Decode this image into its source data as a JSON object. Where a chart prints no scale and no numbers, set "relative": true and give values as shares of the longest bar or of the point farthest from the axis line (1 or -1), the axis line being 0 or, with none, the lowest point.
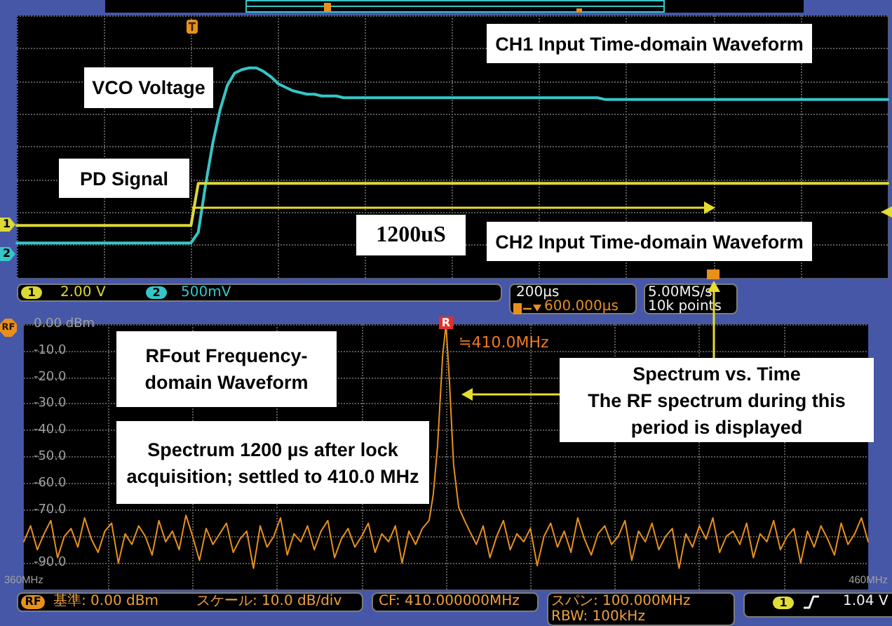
{
  "chart_data": [
    {
      "type": "line",
      "relative": true,
      "grid": true,
      "categories": [
        null,
        null,
        null,
        null,
        null,
        null,
        null,
        null,
        null,
        null,
        null,
        null,
        null,
        null,
        null,
        null,
        null,
        null,
        null,
        null,
        null,
        null,
        null,
        null,
        null,
        null,
        null,
        null,
        null,
        null,
        null,
        null,
        null,
        null,
        null,
        null,
        null,
        null,
        null,
        null,
        null,
        null,
        null,
        null,
        null,
        null,
        null,
        null,
        null,
        null,
        null,
        null,
        null,
        null,
        null,
        null,
        null,
        null,
        null,
        null,
        null,
        null,
        null,
        null,
        null,
        null,
        null,
        null,
        null,
        null,
        null,
        null,
        null,
        null,
        null,
        null,
        null,
        null,
        null,
        null,
        null,
        null,
        null,
        null,
        null,
        null,
        null,
        null,
        null,
        null,
        null,
        null,
        null,
        null,
        null,
        null,
        null,
        null,
        null,
        null,
        null,
        null,
        null,
        null,
        null,
        null,
        null,
        null,
        null,
        null,
        null,
        null,
        null,
        null,
        null,
        null,
        null,
        null,
        null,
        null,
        null
      ],
      "series": [
        {
          "name": "VCO Voltage",
          "color": "#35c6c8",
          "values": [
            0,
            0,
            0,
            0,
            0,
            0,
            0,
            0,
            0,
            0,
            0,
            0,
            0,
            0,
            0,
            0,
            0,
            0,
            0,
            0,
            0,
            0,
            0,
            0,
            0,
            0.06,
            0.33,
            0.57,
            0.76,
            0.9,
            0.97,
            0.99,
            1,
            1,
            0.98,
            0.95,
            0.91,
            0.89,
            0.87,
            0.86,
            0.85,
            0.85,
            0.84,
            0.84,
            0.84,
            0.83,
            0.83,
            0.83,
            0.83,
            0.83,
            0.83,
            0.83,
            0.83,
            0.83,
            0.83,
            0.83,
            0.83,
            0.83,
            0.83,
            0.83,
            0.83,
            0.83,
            0.83,
            0.83,
            0.83,
            0.83,
            0.83,
            0.83,
            0.83,
            0.83,
            0.83,
            0.83,
            0.83,
            0.83,
            0.83,
            0.83,
            0.83,
            0.83,
            0.83,
            0.83,
            0.83,
            0.82,
            0.82,
            0.82,
            0.82,
            0.82,
            0.82,
            0.82,
            0.82,
            0.82,
            0.82,
            0.82,
            0.82,
            0.82,
            0.82,
            0.82,
            0.82,
            0.82,
            0.82,
            0.82,
            0.82,
            0.82,
            0.82,
            0.82,
            0.82,
            0.82,
            0.82,
            0.82,
            0.82,
            0.82,
            0.82,
            0.82,
            0.82,
            0.82,
            0.82,
            0.82,
            0.82,
            0.82,
            0.82,
            0.82,
            0.82
          ]
        },
        {
          "name": "PD Signal",
          "color": "#dcd836",
          "values": [
            0.1,
            0.1,
            0.1,
            0.1,
            0.1,
            0.1,
            0.1,
            0.1,
            0.1,
            0.1,
            0.1,
            0.1,
            0.1,
            0.1,
            0.1,
            0.1,
            0.1,
            0.1,
            0.1,
            0.1,
            0.1,
            0.1,
            0.1,
            0.1,
            0.1,
            0.34,
            0.34,
            0.34,
            0.34,
            0.34,
            0.34,
            0.34,
            0.34,
            0.34,
            0.34,
            0.34,
            0.34,
            0.34,
            0.34,
            0.34,
            0.34,
            0.34,
            0.34,
            0.34,
            0.34,
            0.34,
            0.34,
            0.34,
            0.34,
            0.34,
            0.34,
            0.34,
            0.34,
            0.34,
            0.34,
            0.34,
            0.34,
            0.34,
            0.34,
            0.34,
            0.34,
            0.34,
            0.34,
            0.34,
            0.34,
            0.34,
            0.34,
            0.34,
            0.34,
            0.34,
            0.34,
            0.34,
            0.34,
            0.34,
            0.34,
            0.34,
            0.34,
            0.34,
            0.34,
            0.34,
            0.34,
            0.34,
            0.34,
            0.34,
            0.34,
            0.34,
            0.34,
            0.34,
            0.34,
            0.34,
            0.34,
            0.34,
            0.34,
            0.34,
            0.34,
            0.34,
            0.34,
            0.34,
            0.34,
            0.34,
            0.34,
            0.34,
            0.34,
            0.34,
            0.34,
            0.34,
            0.34,
            0.34,
            0.34,
            0.34,
            0.34,
            0.34,
            0.34,
            0.34,
            0.34,
            0.34,
            0.34,
            0.34,
            0.34,
            0.34,
            0.34
          ]
        }
      ],
      "annotations": [
        "CH1 Input Time-domain Waveform",
        "CH2 Input Time-domain Waveform",
        "1200uS",
        "1",
        "2",
        "1",
        "2.00 V",
        "2",
        "500mV",
        "200µs",
        "600.000µs",
        "5.00MS/s",
        "10k points"
      ]
    },
    {
      "type": "line",
      "color": "#e8901c",
      "grid": true,
      "xlim": [
        360,
        460
      ],
      "ylim": [
        -100,
        0
      ],
      "xticks": [
        {
          "value": 360,
          "label": "360MHz"
        },
        {
          "value": 370,
          "label": null
        },
        {
          "value": 380,
          "label": null
        },
        {
          "value": 390,
          "label": null
        },
        {
          "value": 400,
          "label": null
        },
        {
          "value": 410,
          "label": null
        },
        {
          "value": 420,
          "label": null
        },
        {
          "value": 430,
          "label": null
        },
        {
          "value": 440,
          "label": null
        },
        {
          "value": 450,
          "label": null
        },
        {
          "value": 460,
          "label": "460MHz"
        }
      ],
      "yticks": [
        {
          "value": 0,
          "label": "0.00 dBm"
        },
        {
          "value": -10,
          "label": "-10.0"
        },
        {
          "value": -20,
          "label": "-20.0"
        },
        {
          "value": -30,
          "label": "-30.0"
        },
        {
          "value": -40,
          "label": "-40.0"
        },
        {
          "value": -50,
          "label": "-50.0"
        },
        {
          "value": -60,
          "label": "-60.0"
        },
        {
          "value": -70,
          "label": "-70.0"
        },
        {
          "value": -80,
          "label": null
        },
        {
          "value": -90,
          "label": "-90.0"
        }
      ],
      "x": [
        360,
        360.8,
        361.6,
        362.4,
        363.2,
        364,
        364.8,
        365.6,
        366.4,
        367.2,
        368,
        368.8,
        369.6,
        370.4,
        371.2,
        372,
        372.8,
        373.6,
        374.4,
        375.2,
        376,
        376.8,
        377.6,
        378.4,
        379.2,
        380,
        380.8,
        381.6,
        382.4,
        383.2,
        384,
        384.8,
        385.6,
        386.4,
        387.2,
        388,
        388.8,
        389.6,
        390.4,
        391.2,
        392,
        392.8,
        393.6,
        394.4,
        395.2,
        396,
        396.8,
        397.6,
        398.4,
        399.2,
        400,
        400.8,
        401.6,
        402.4,
        403.2,
        404,
        404.8,
        405.6,
        406.4,
        407.2,
        408,
        408.5,
        409,
        409.6,
        410,
        410.4,
        410.9,
        411.5,
        412.2,
        412.8,
        413.6,
        414.4,
        415.2,
        416,
        416.8,
        417.6,
        418.4,
        419.2,
        420,
        420.8,
        421.6,
        422.4,
        423.2,
        424,
        424.8,
        425.6,
        426.4,
        427.2,
        428,
        428.8,
        429.6,
        430.4,
        431.2,
        432,
        432.8,
        433.6,
        434.4,
        435.2,
        436,
        436.8,
        437.6,
        438.4,
        439.2,
        440,
        440.8,
        441.6,
        442.4,
        443.2,
        444,
        444.8,
        445.6,
        446.4,
        447.2,
        448,
        448.8,
        449.6,
        450.4,
        451.2,
        452,
        452.8,
        453.6,
        454.4,
        455.2,
        456,
        456.8,
        457.6,
        458.4,
        459.2,
        460
      ],
      "values": [
        -82,
        -76,
        -85,
        -79,
        -74,
        -88,
        -80,
        -77,
        -84,
        -73,
        -81,
        -86,
        -78,
        -75,
        -90,
        -79,
        -83,
        -76,
        -80,
        -87,
        -74,
        -82,
        -78,
        -85,
        -72,
        -80,
        -89,
        -77,
        -83,
        -79,
        -75,
        -86,
        -81,
        -78,
        -92,
        -76,
        -84,
        -80,
        -73,
        -87,
        -79,
        -82,
        -76,
        -85,
        -78,
        -74,
        -88,
        -81,
        -77,
        -84,
        -80,
        -75,
        -86,
        -79,
        -82,
        -76,
        -90,
        -78,
        -83,
        -77,
        -74,
        -64,
        -46,
        -12,
        0,
        -21,
        -53,
        -69,
        -74,
        -78,
        -83,
        -76,
        -88,
        -80,
        -74,
        -85,
        -79,
        -82,
        -77,
        -91,
        -80,
        -75,
        -84,
        -78,
        -86,
        -73,
        -81,
        -87,
        -79,
        -76,
        -83,
        -80,
        -74,
        -89,
        -78,
        -82,
        -75,
        -85,
        -80,
        -77,
        -92,
        -79,
        -84,
        -76,
        -81,
        -73,
        -86,
        -80,
        -78,
        -83,
        -75,
        -88,
        -79,
        -82,
        -74,
        -85,
        -80,
        -77,
        -90,
        -78,
        -84,
        -76,
        -81,
        -87,
        -75,
        -83,
        -79,
        -73,
        -82
      ],
      "annotations": [
        "RFout Frequency-domain Waveform",
        "Spectrum 1200 µs after lock acquisition; settled to 410.0 MHz",
        "Spectrum vs. Time",
        "The RF spectrum during this period is displayed",
        {
          "text": "≒410.0MHz",
          "x": 410,
          "y": 0
        },
        {
          "text": "R",
          "x": 410,
          "y": 0
        },
        "RF",
        "RF",
        "基準: 0.00 dBm",
        "スケール: 10.0 dB/div",
        "CF: 410.000000MHz",
        "スパン: 100.000MHz",
        "RBW: 100kHz",
        "1",
        "1.04 V"
      ]
    }
  ]
}
